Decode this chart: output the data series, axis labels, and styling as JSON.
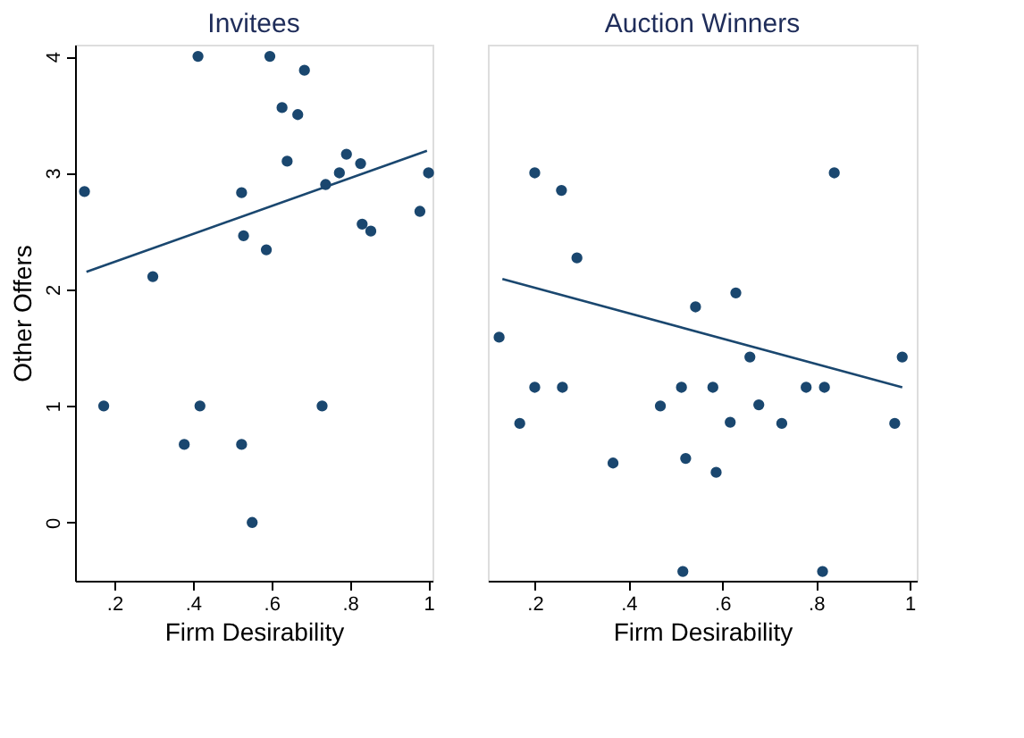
{
  "chart_data": [
    {
      "type": "scatter",
      "title": "Invitees",
      "xlabel": "Firm Desirability",
      "ylabel": "Other Offers",
      "xlim": [
        0.1,
        1.01
      ],
      "ylim": [
        -0.5,
        4.1
      ],
      "xticks": [
        {
          "value": 0.2,
          "label": ".2"
        },
        {
          "value": 0.4,
          "label": ".4"
        },
        {
          "value": 0.6,
          "label": ".6"
        },
        {
          "value": 0.8,
          "label": ".8"
        },
        1
      ],
      "yticks": [
        0,
        1,
        2,
        3,
        4
      ],
      "grid": false,
      "series": [
        {
          "marker": "circle",
          "color": "#1a476f",
          "x": [
            0.124,
            0.173,
            0.298,
            0.378,
            0.413,
            0.418,
            0.524,
            0.529,
            0.524,
            0.551,
            0.587,
            0.596,
            0.627,
            0.64,
            0.667,
            0.684,
            0.729,
            0.738,
            0.773,
            0.791,
            0.827,
            0.831,
            0.853,
            0.978,
            1.0
          ],
          "values": [
            2.84,
            1,
            2.11,
            0.67,
            4,
            1,
            2.83,
            2.46,
            0.67,
            0,
            2.34,
            4,
            3.56,
            3.1,
            3.5,
            3.88,
            1,
            2.9,
            3.0,
            3.16,
            3.08,
            2.56,
            2.5,
            2.67,
            3.0
          ]
        },
        {
          "type": "line",
          "color": "#1a476f",
          "line_style": "solid",
          "x": [
            0.129,
            0.996
          ],
          "values": [
            2.15,
            3.19
          ]
        }
      ]
    },
    {
      "type": "scatter",
      "title": "Auction Winners",
      "xlabel": "Firm Desirability",
      "xlim": [
        0.1,
        1.015
      ],
      "ylim": [
        -0.5,
        4.1
      ],
      "xticks": [
        {
          "value": 0.2,
          "label": ".2"
        },
        {
          "value": 0.4,
          "label": ".4"
        },
        {
          "value": 0.6,
          "label": ".6"
        },
        {
          "value": 0.8,
          "label": ".8"
        },
        1
      ],
      "tick_labels": "x",
      "grid": false,
      "series": [
        {
          "marker": "circle",
          "color": "#1a476f",
          "x": [
            0.124,
            0.168,
            0.2,
            0.2,
            0.257,
            0.259,
            0.29,
            0.367,
            0.468,
            0.513,
            0.516,
            0.522,
            0.543,
            0.58,
            0.587,
            0.617,
            0.629,
            0.659,
            0.678,
            0.727,
            0.779,
            0.814,
            0.818,
            0.839,
            0.968,
            0.984
          ],
          "values": [
            1.59,
            0.85,
            3.0,
            1.16,
            2.85,
            1.16,
            2.27,
            0.51,
            1.0,
            1.16,
            -0.42,
            0.55,
            1.85,
            1.16,
            0.43,
            0.86,
            1.97,
            1.42,
            1.01,
            0.85,
            1.16,
            -0.42,
            1.16,
            3.0,
            0.85,
            1.42
          ]
        },
        {
          "type": "line",
          "color": "#1a476f",
          "line_style": "solid",
          "x": [
            0.131,
            0.984
          ],
          "values": [
            2.09,
            1.16
          ]
        }
      ]
    }
  ]
}
